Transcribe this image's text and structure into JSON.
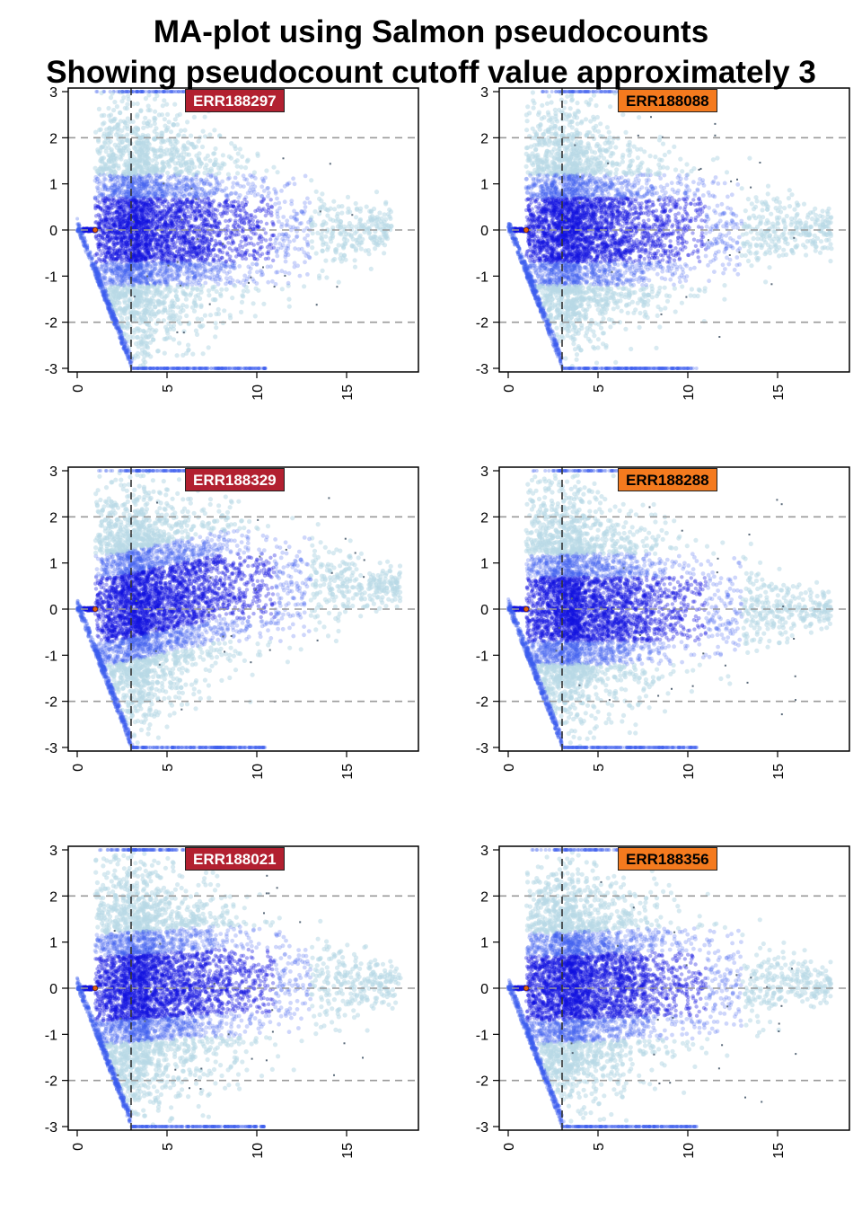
{
  "figure": {
    "title_line1": "MA-plot using Salmon pseudocounts",
    "title_line2": "Showing pseudocount cutoff value approximately 3"
  },
  "colors": {
    "dense": "#1010e0",
    "medium": "#3a5cf0",
    "sparse": "#b8d8e6",
    "outlier": "#5a6a7a",
    "dashed_h": "#9a9a9a",
    "cutoff_line": "#333333",
    "center_point": "#e06010",
    "badge_red": "#b22030",
    "badge_orange": "#f47a1e"
  },
  "chart_data": [
    {
      "type": "scatter",
      "label": "ERR188297",
      "label_style": "red",
      "xlim": [
        -0.5,
        19
      ],
      "ylim": [
        -3,
        3
      ],
      "x_ticks": [
        "0",
        "5",
        "10",
        "15"
      ],
      "y_ticks": [
        "3",
        "2",
        "1",
        "0",
        "-1",
        "-2",
        "-3"
      ],
      "hlines": [
        -2,
        0,
        2
      ],
      "vline": 3,
      "center_point": [
        1,
        0
      ],
      "cloud": {
        "peak_x": 4.5,
        "spread": 0.85,
        "y_offset": 0.0,
        "extent_x": 17.5
      }
    },
    {
      "type": "scatter",
      "label": "ERR188088",
      "label_style": "orange",
      "xlim": [
        -0.5,
        19
      ],
      "ylim": [
        -3,
        3
      ],
      "x_ticks": [
        "0",
        "5",
        "10",
        "15"
      ],
      "y_ticks": [
        "3",
        "2",
        "1",
        "0",
        "-1",
        "-2",
        "-3"
      ],
      "hlines": [
        -2,
        0,
        2
      ],
      "vline": 3,
      "center_point": [
        1,
        0
      ],
      "cloud": {
        "peak_x": 4.5,
        "spread": 0.8,
        "y_offset": 0.0,
        "extent_x": 18
      }
    },
    {
      "type": "scatter",
      "label": "ERR188329",
      "label_style": "red",
      "xlim": [
        -0.5,
        19
      ],
      "ylim": [
        -3,
        3
      ],
      "x_ticks": [
        "0",
        "5",
        "10",
        "15"
      ],
      "y_ticks": [
        "3",
        "2",
        "1",
        "0",
        "-1",
        "-2",
        "-3"
      ],
      "hlines": [
        -2,
        0,
        2
      ],
      "vline": 3,
      "center_point": [
        1,
        0
      ],
      "cloud": {
        "peak_x": 4.5,
        "spread": 0.8,
        "y_offset": 0.5,
        "extent_x": 18
      }
    },
    {
      "type": "scatter",
      "label": "ERR188288",
      "label_style": "orange",
      "xlim": [
        -0.5,
        19
      ],
      "ylim": [
        -3,
        3
      ],
      "x_ticks": [
        "0",
        "5",
        "10",
        "15"
      ],
      "y_ticks": [
        "3",
        "2",
        "1",
        "0",
        "-1",
        "-2",
        "-3"
      ],
      "hlines": [
        -2,
        0,
        2
      ],
      "vline": 3,
      "center_point": [
        1,
        0
      ],
      "cloud": {
        "peak_x": 4.5,
        "spread": 0.8,
        "y_offset": 0.0,
        "extent_x": 18
      }
    },
    {
      "type": "scatter",
      "label": "ERR188021",
      "label_style": "red",
      "xlim": [
        -0.5,
        19
      ],
      "ylim": [
        -3,
        3
      ],
      "x_ticks": [
        "0",
        "5",
        "10",
        "15"
      ],
      "y_ticks": [
        "3",
        "2",
        "1",
        "0",
        "-1",
        "-2",
        "-3"
      ],
      "hlines": [
        -2,
        0,
        2
      ],
      "vline": 3,
      "center_point": [
        1,
        0
      ],
      "cloud": {
        "peak_x": 4.5,
        "spread": 0.85,
        "y_offset": 0.15,
        "extent_x": 18
      }
    },
    {
      "type": "scatter",
      "label": "ERR188356",
      "label_style": "orange",
      "xlim": [
        -0.5,
        19
      ],
      "ylim": [
        -3,
        3
      ],
      "x_ticks": [
        "0",
        "5",
        "10",
        "15"
      ],
      "y_ticks": [
        "3",
        "2",
        "1",
        "0",
        "-1",
        "-2",
        "-3"
      ],
      "hlines": [
        -2,
        0,
        2
      ],
      "vline": 3,
      "center_point": [
        1,
        0
      ],
      "cloud": {
        "peak_x": 4.5,
        "spread": 0.8,
        "y_offset": 0.1,
        "extent_x": 18
      }
    }
  ]
}
